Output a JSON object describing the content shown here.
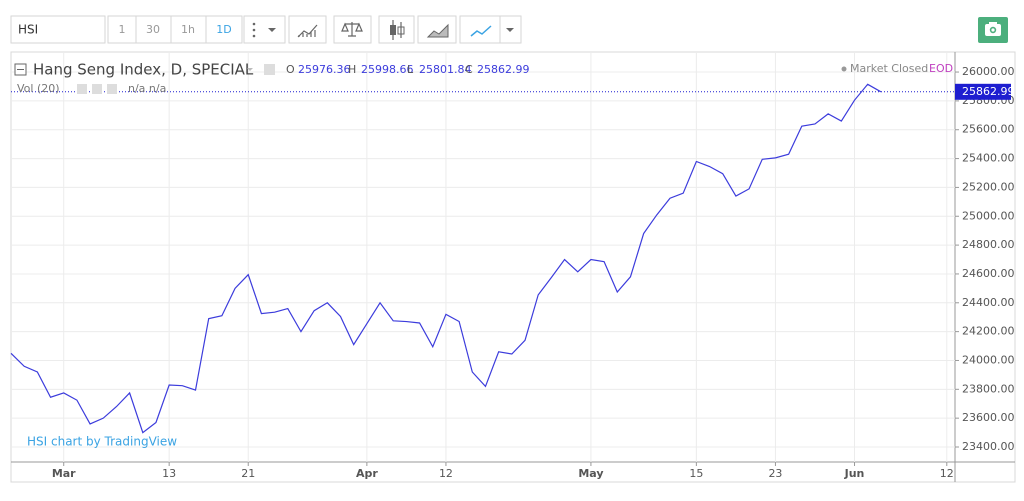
{
  "toolbar": {
    "symbol": "HSI",
    "intervals": [
      "1",
      "30",
      "1h",
      "1D"
    ]
  },
  "chart_data": {
    "type": "line",
    "title": "Hang Seng Index, D, SPECIAL",
    "ohlc": [
      {
        "label": "O",
        "value": 25976.36
      },
      {
        "label": "H",
        "value": 25998.66
      },
      {
        "label": "L",
        "value": 25801.84
      },
      {
        "label": "C",
        "value": 25862.99
      }
    ],
    "volume_label": "Vol (20)",
    "volume_values": "n/a n/a",
    "status": "Market Closed",
    "feed": "EOD",
    "watermark": "HSI chart by TradingView",
    "last_price": 25862.99,
    "categories": [
      null,
      null,
      null,
      null,
      "Mar",
      null,
      null,
      null,
      null,
      null,
      null,
      null,
      "13",
      null,
      null,
      null,
      null,
      null,
      "21",
      null,
      null,
      null,
      null,
      null,
      null,
      null,
      null,
      "Apr",
      null,
      null,
      null,
      null,
      null,
      "12",
      null,
      null,
      null,
      null,
      null,
      null,
      null,
      null,
      null,
      null,
      "May",
      null,
      null,
      null,
      null,
      null,
      null,
      null,
      "15",
      null,
      null,
      null,
      null,
      null,
      "23",
      null,
      null,
      null,
      null,
      null,
      "Jun",
      null,
      null,
      null,
      null,
      null,
      null,
      "12"
    ],
    "series": [
      {
        "name": "HSI",
        "color": "#3c3cdc",
        "values": [
          24050,
          23960,
          23920,
          23745,
          23775,
          23725,
          23560,
          23600,
          23680,
          23775,
          23500,
          23570,
          23830,
          23825,
          23795,
          24290,
          24310,
          24500,
          24595,
          24325,
          24335,
          24360,
          24200,
          24345,
          24400,
          24305,
          24110,
          24255,
          24400,
          24275,
          24270,
          24260,
          24095,
          24320,
          24270,
          23920,
          23820,
          24060,
          24045,
          24140,
          24455,
          24575,
          24700,
          24615,
          24700,
          24685,
          24475,
          24580,
          24880,
          25010,
          25125,
          25160,
          25380,
          25345,
          25295,
          25140,
          25190,
          25395,
          25405,
          25430,
          25625,
          25640,
          25710,
          25660,
          25805,
          25915,
          25862.99,
          null,
          null,
          null,
          null,
          null
        ]
      }
    ],
    "ylim": [
      23296,
      26139
    ],
    "yticks": [
      {
        "value": 23400,
        "label": "23400.00"
      },
      {
        "value": 23600,
        "label": "23600.00"
      },
      {
        "value": 23800,
        "label": "23800.00"
      },
      {
        "value": 24000,
        "label": "24000.00"
      },
      {
        "value": 24200,
        "label": "24200.00"
      },
      {
        "value": 24400,
        "label": "24400.00"
      },
      {
        "value": 24600,
        "label": "24600.00"
      },
      {
        "value": 24800,
        "label": "24800.00"
      },
      {
        "value": 25000,
        "label": "25000.00"
      },
      {
        "value": 25200,
        "label": "25200.00"
      },
      {
        "value": 25400,
        "label": "25400.00"
      },
      {
        "value": 25600,
        "label": "25600.00"
      },
      {
        "value": 25800,
        "label": "25800.00"
      },
      {
        "value": 26000,
        "label": "26000.00"
      }
    ],
    "grid": true
  }
}
